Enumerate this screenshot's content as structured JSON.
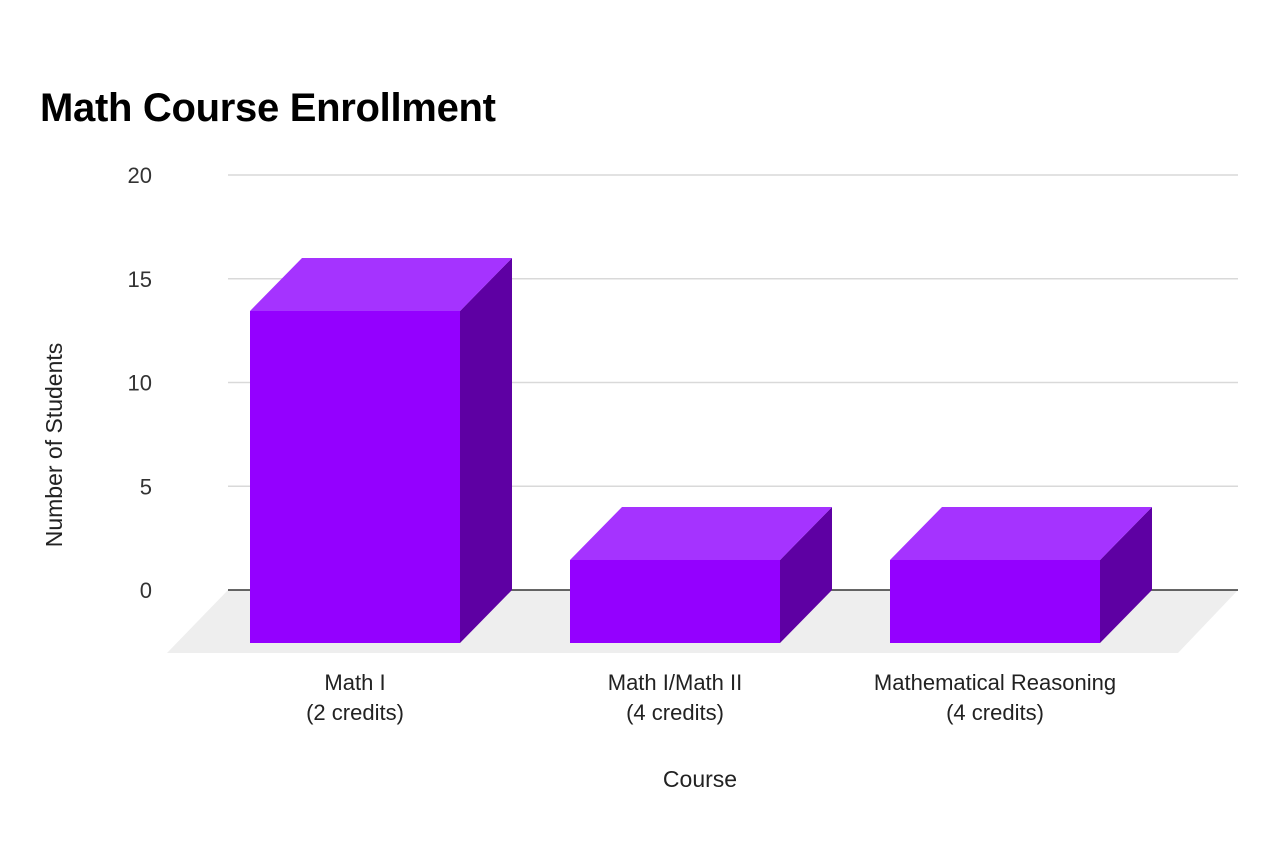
{
  "chart_data": {
    "type": "bar",
    "title": "Math Course Enrollment",
    "xlabel": "Course",
    "ylabel": "Number of Students",
    "categories": [
      [
        "Math I",
        "(2 credits)"
      ],
      [
        "Math I/Math II",
        "(4 credits)"
      ],
      [
        "Mathematical Reasoning",
        "(4 credits)"
      ]
    ],
    "values": [
      16,
      4,
      4
    ],
    "ylim": [
      0,
      20
    ],
    "yticks": [
      0,
      5,
      10,
      15,
      20
    ],
    "style": "3d",
    "grid": true,
    "legend": "none",
    "colors": {
      "bar_front": "#9400FF",
      "bar_top": "#A533FF",
      "bar_side": "#5E00A3",
      "floor": "#EEEEEE",
      "gridline": "#D9D9D9",
      "axis": "#333333"
    }
  }
}
